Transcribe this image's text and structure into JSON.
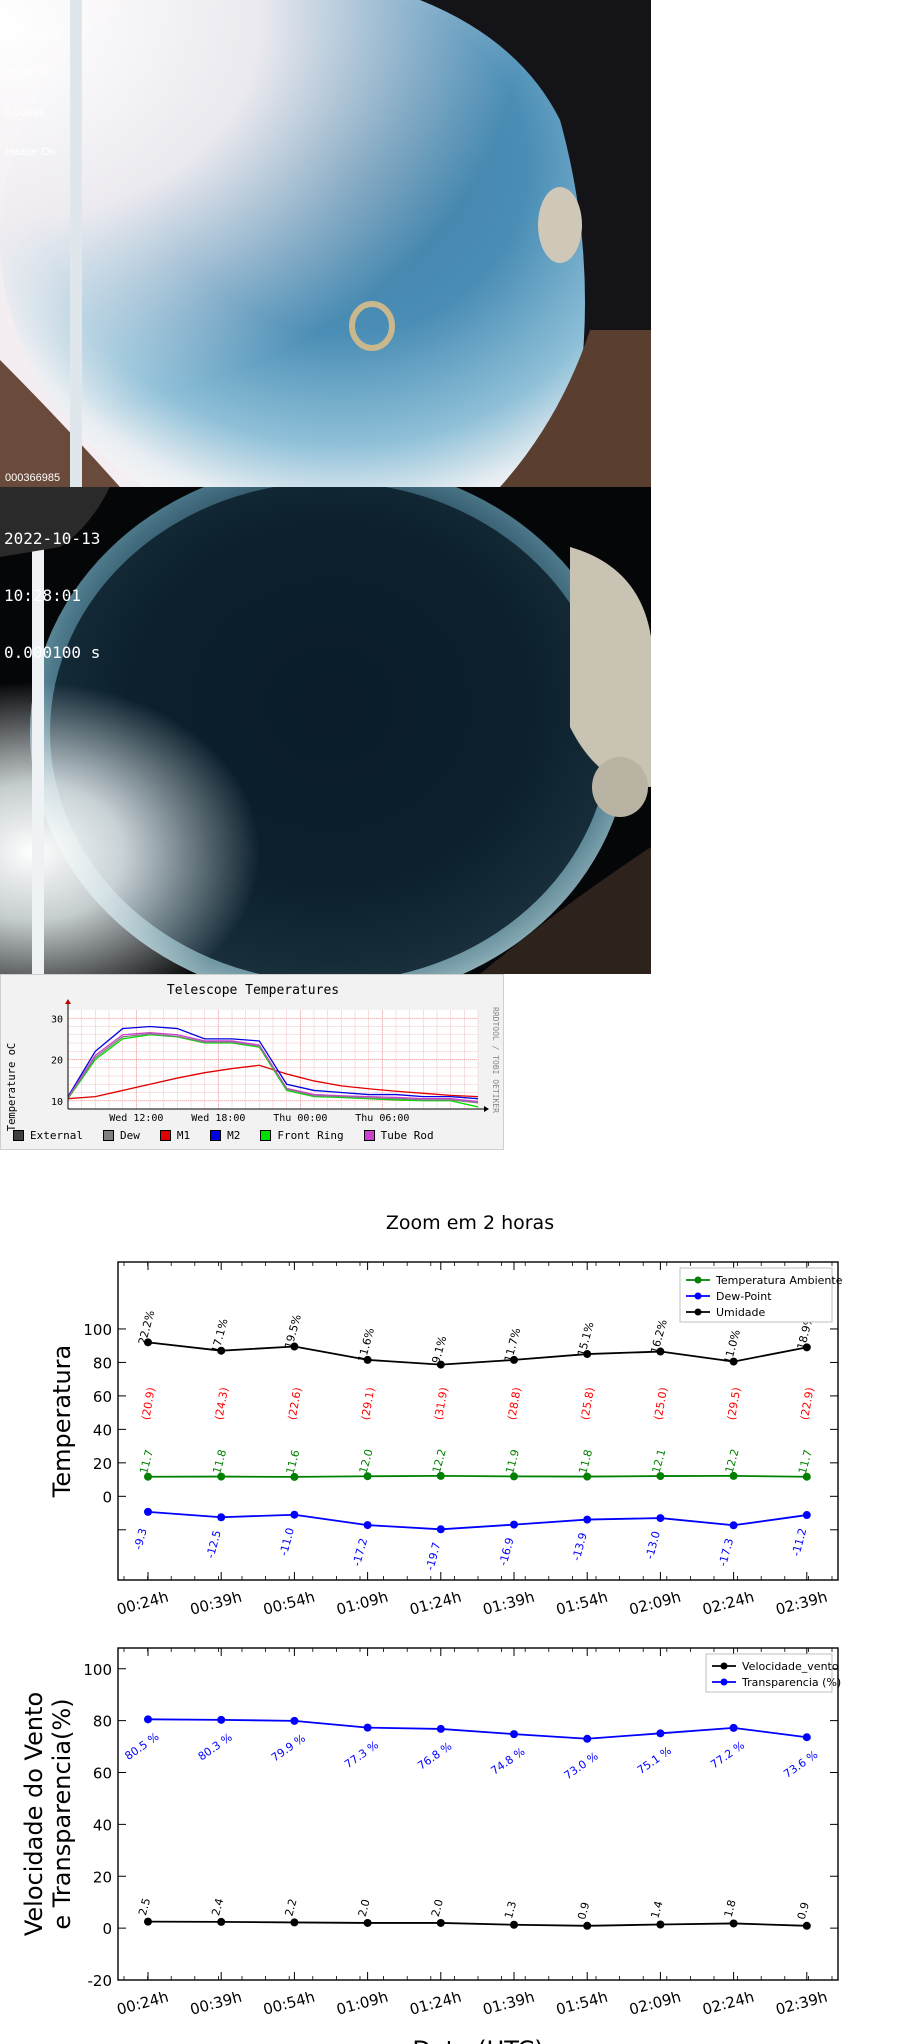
{
  "cameras": [
    {
      "overlay_lines": [
        "2022/10/13",
        "07:28:33",
        "0.0009s",
        "Heater On"
      ],
      "footer_id": "000366985"
    },
    {
      "overlay_lines": [
        "2022-10-13",
        "10:28:01",
        "0.000100 s"
      ]
    }
  ],
  "chart_data": [
    {
      "type": "line",
      "title": "Telescope Temperatures",
      "ylabel": "Temperature oC",
      "side_label": "RRDTOOL / TOBI OETIKER",
      "yticks": [
        10,
        20,
        30
      ],
      "ylim": [
        8,
        32
      ],
      "xticks": [
        "Wed 12:00",
        "Wed 18:00",
        "Thu 00:00",
        "Thu 06:00"
      ],
      "legend": [
        {
          "name": "External",
          "color": "#404040"
        },
        {
          "name": "Dew",
          "color": "#808080"
        },
        {
          "name": "M1",
          "color": "#e00000"
        },
        {
          "name": "M2",
          "color": "#0000e0"
        },
        {
          "name": "Front Ring",
          "color": "#00e000"
        },
        {
          "name": "Tube Rod",
          "color": "#d040d0"
        }
      ],
      "x_hours": [
        0,
        2,
        4,
        6,
        8,
        10,
        12,
        14,
        16,
        18,
        20,
        22,
        24,
        26,
        28,
        30
      ],
      "series": [
        {
          "name": "M1",
          "color": "#e00000",
          "values": [
            10.5,
            11,
            12.5,
            14,
            15.5,
            16.8,
            17.8,
            18.6,
            16.5,
            14.8,
            13.6,
            12.9,
            12.3,
            11.8,
            11.3,
            11
          ]
        },
        {
          "name": "M2",
          "color": "#0000e0",
          "values": [
            11,
            22,
            27.5,
            28,
            27.5,
            25,
            25,
            24.5,
            14,
            12.5,
            12,
            11.5,
            11.5,
            11,
            11,
            10.5
          ]
        },
        {
          "name": "Front Ring",
          "color": "#00e000",
          "values": [
            10.5,
            20,
            25,
            26,
            25.5,
            24,
            24,
            23,
            12.5,
            11,
            10.8,
            10.5,
            10.2,
            10,
            10,
            8.5
          ]
        },
        {
          "name": "Tube Rod",
          "color": "#d040d0",
          "values": [
            10.8,
            21,
            26,
            26.5,
            26,
            24.5,
            24.5,
            23.5,
            13,
            11.5,
            11.2,
            11,
            10.8,
            10.5,
            10.5,
            9.8
          ]
        },
        {
          "name": "Dew",
          "color": "#808080",
          "values": [
            10.6,
            20.5,
            25.5,
            26.2,
            25.6,
            24.2,
            24.2,
            23.2,
            12.8,
            11.2,
            11,
            10.7,
            10.5,
            10.2,
            10.2,
            9.5
          ]
        }
      ]
    },
    {
      "type": "line",
      "title": "Zoom em 2 horas",
      "ylabel": "Temperatura",
      "categories": [
        "00:24h",
        "00:39h",
        "00:54h",
        "01:09h",
        "01:24h",
        "01:39h",
        "01:54h",
        "02:09h",
        "02:24h",
        "02:39h"
      ],
      "yticks": [
        0,
        20,
        40,
        60,
        80,
        100
      ],
      "ylim": [
        -50,
        140
      ],
      "series": [
        {
          "name": "Temperatura Ambiente",
          "color": "#008000",
          "values": [
            11.7,
            11.8,
            11.6,
            12.0,
            12.2,
            11.9,
            11.8,
            12.1,
            12.2,
            11.7
          ],
          "labels": [
            "11.7",
            "11.8",
            "11.6",
            "12.0",
            "12.2",
            "11.9",
            "11.8",
            "12.1",
            "12.2",
            "11.7"
          ]
        },
        {
          "name": "Dew-Point",
          "color": "#0000ff",
          "values": [
            -9.3,
            -12.5,
            -11.0,
            -17.2,
            -19.7,
            -16.9,
            -13.9,
            -13.0,
            -17.3,
            -11.2
          ],
          "labels": [
            "-9.3",
            "-12.5",
            "-11.0",
            "-17.2",
            "-19.7",
            "-16.9",
            "-13.9",
            "-13.0",
            "-17.3",
            "-11.2"
          ]
        },
        {
          "name": "Umidade",
          "color": "#000000",
          "values": [
            92,
            87,
            89.5,
            81.5,
            78.7,
            81.5,
            85,
            86.5,
            80.5,
            89
          ],
          "labels": [
            "22.2%",
            "17.1%",
            "19.5%",
            "11.6%",
            "9.1%",
            "11.7%",
            "15.1%",
            "16.2%",
            "11.0%",
            "18.9%"
          ]
        }
      ],
      "extra_labels": {
        "color": "#ff0000",
        "labels": [
          "(20.9)",
          "(24.3)",
          "(22.6)",
          "(29.1)",
          "(31.9)",
          "(28.8)",
          "(25.8)",
          "(25.0)",
          "(29.5)",
          "(22.9)"
        ]
      },
      "legend_position": "top-right"
    },
    {
      "type": "line",
      "ylabel_lines": [
        "Velocidade do Vento",
        "e Transparencia(%)"
      ],
      "xlabel": "Data (UTC)",
      "categories": [
        "00:24h",
        "00:39h",
        "00:54h",
        "01:09h",
        "01:24h",
        "01:39h",
        "01:54h",
        "02:09h",
        "02:24h",
        "02:39h"
      ],
      "yticks": [
        -20,
        0,
        20,
        40,
        60,
        80,
        100
      ],
      "ylim": [
        -20,
        108
      ],
      "series": [
        {
          "name": "Velocidade_vento",
          "color": "#000000",
          "values": [
            2.5,
            2.4,
            2.2,
            2.0,
            2.0,
            1.3,
            0.9,
            1.4,
            1.8,
            0.9
          ],
          "labels": [
            "2.5",
            "2.4",
            "2.2",
            "2.0",
            "2.0",
            "1.3",
            "0.9",
            "1.4",
            "1.8",
            "0.9"
          ]
        },
        {
          "name": "Transparencia (%)",
          "color": "#0000ff",
          "values": [
            80.5,
            80.3,
            79.9,
            77.3,
            76.8,
            74.8,
            73.0,
            75.1,
            77.2,
            73.6
          ],
          "labels": [
            "80.5 %",
            "80.3 %",
            "79.9 %",
            "77.3 %",
            "76.8 %",
            "74.8 %",
            "73.0 %",
            "75.1 %",
            "77.2 %",
            "73.6 %"
          ]
        }
      ],
      "legend_position": "top-right"
    }
  ]
}
